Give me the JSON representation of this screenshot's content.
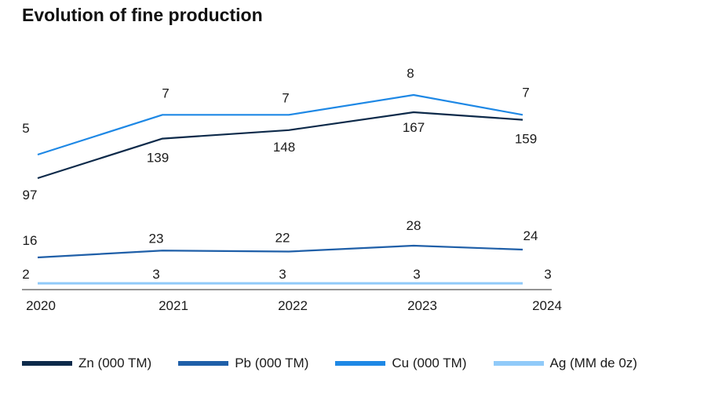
{
  "chart_data": {
    "type": "line",
    "title": "Evolution of fine production",
    "x": [
      "2020",
      "2021",
      "2022",
      "2023",
      "2024"
    ],
    "series": [
      {
        "name": "Zn (000 TM)",
        "color": "#0d2a4a",
        "values": [
          97,
          139,
          148,
          167,
          159
        ],
        "labels": [
          "97",
          "139",
          "148",
          "167",
          "159"
        ]
      },
      {
        "name": "Pb (000 TM)",
        "color": "#1f5fa8",
        "values": [
          16,
          23,
          22,
          28,
          24
        ],
        "labels": [
          "16",
          "23",
          "22",
          "28",
          "24"
        ]
      },
      {
        "name": "Cu (000 TM)",
        "color": "#1e88e5",
        "values": [
          5,
          7,
          7,
          8,
          7
        ],
        "labels": [
          "5",
          "7",
          "7",
          "8",
          "7"
        ]
      },
      {
        "name": "Ag (MM de 0z)",
        "color": "#90caf9",
        "values": [
          2,
          3,
          3,
          3,
          3
        ],
        "labels": [
          "2",
          "3",
          "3",
          "3",
          "3"
        ]
      }
    ],
    "grid": false,
    "legend": "bottom"
  }
}
